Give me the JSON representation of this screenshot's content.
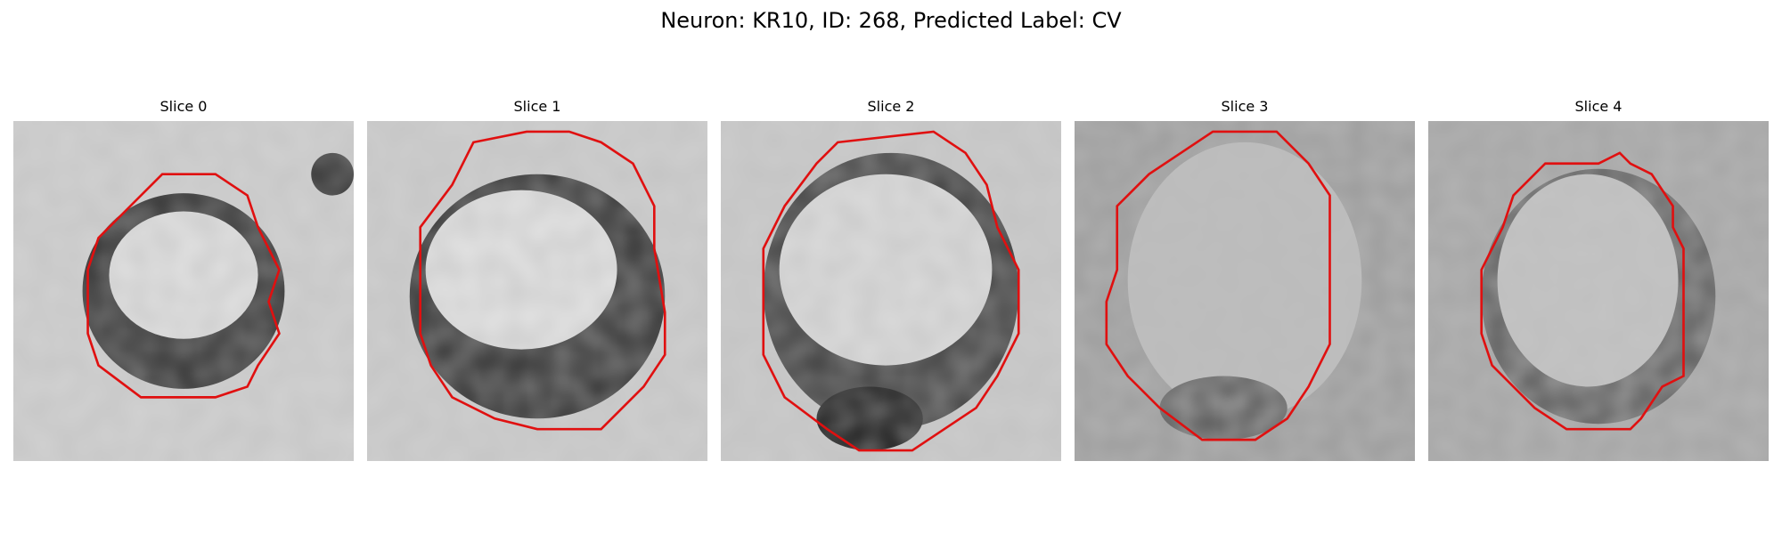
{
  "figure": {
    "title": "Neuron: KR10, ID: 268, Predicted Label: CV"
  },
  "colors": {
    "contour": "#e01010",
    "colormap": "grayscale"
  },
  "slices": [
    {
      "label": "Slice 0"
    },
    {
      "label": "Slice 1"
    },
    {
      "label": "Slice 2"
    },
    {
      "label": "Slice 3"
    },
    {
      "label": "Slice 4"
    }
  ]
}
